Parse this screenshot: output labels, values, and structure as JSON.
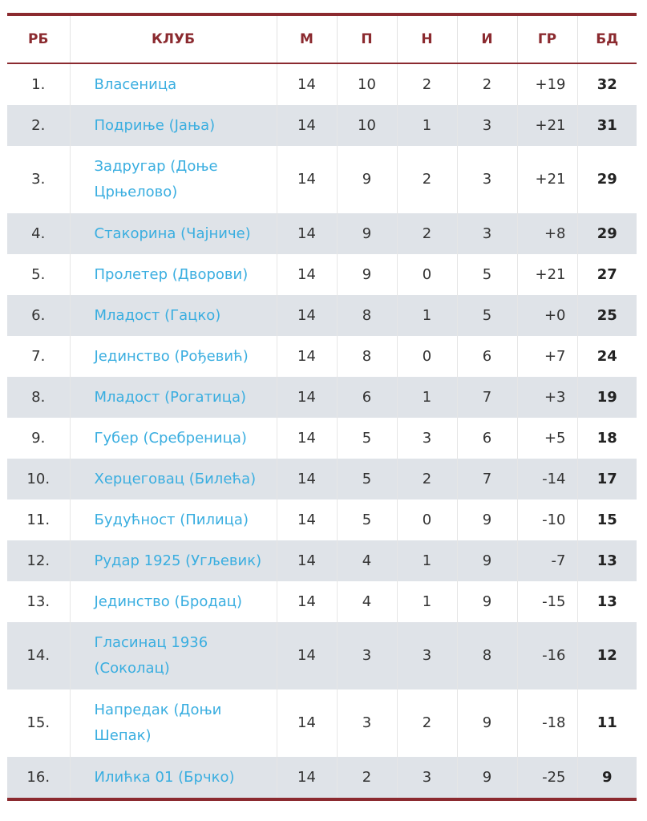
{
  "headers": {
    "pos": "РБ",
    "club": "КЛУБ",
    "m": "М",
    "p": "П",
    "n": "Н",
    "i": "И",
    "gr": "ГР",
    "bd": "БД"
  },
  "rows": [
    {
      "pos": "1.",
      "club": "Власеница",
      "m": "14",
      "p": "10",
      "n": "2",
      "i": "2",
      "gr": "+19",
      "bd": "32"
    },
    {
      "pos": "2.",
      "club": "Подриње (Јања)",
      "m": "14",
      "p": "10",
      "n": "1",
      "i": "3",
      "gr": "+21",
      "bd": "31"
    },
    {
      "pos": "3.",
      "club": "Задругар (Доње Црњелово)",
      "m": "14",
      "p": "9",
      "n": "2",
      "i": "3",
      "gr": "+21",
      "bd": "29"
    },
    {
      "pos": "4.",
      "club": "Стакорина (Чајниче)",
      "m": "14",
      "p": "9",
      "n": "2",
      "i": "3",
      "gr": "+8",
      "bd": "29"
    },
    {
      "pos": "5.",
      "club": "Пролетер (Дворови)",
      "m": "14",
      "p": "9",
      "n": "0",
      "i": "5",
      "gr": "+21",
      "bd": "27"
    },
    {
      "pos": "6.",
      "club": "Младост (Гацко)",
      "m": "14",
      "p": "8",
      "n": "1",
      "i": "5",
      "gr": "+0",
      "bd": "25"
    },
    {
      "pos": "7.",
      "club": "Јединство (Рођевић)",
      "m": "14",
      "p": "8",
      "n": "0",
      "i": "6",
      "gr": "+7",
      "bd": "24"
    },
    {
      "pos": "8.",
      "club": "Младост (Рогатица)",
      "m": "14",
      "p": "6",
      "n": "1",
      "i": "7",
      "gr": "+3",
      "bd": "19"
    },
    {
      "pos": "9.",
      "club": "Губер (Сребреница)",
      "m": "14",
      "p": "5",
      "n": "3",
      "i": "6",
      "gr": "+5",
      "bd": "18"
    },
    {
      "pos": "10.",
      "club": "Херцеговац (Билећа)",
      "m": "14",
      "p": "5",
      "n": "2",
      "i": "7",
      "gr": "-14",
      "bd": "17"
    },
    {
      "pos": "11.",
      "club": "Будућност (Пилица)",
      "m": "14",
      "p": "5",
      "n": "0",
      "i": "9",
      "gr": "-10",
      "bd": "15"
    },
    {
      "pos": "12.",
      "club": "Рудар 1925 (Угљевик)",
      "m": "14",
      "p": "4",
      "n": "1",
      "i": "9",
      "gr": "-7",
      "bd": "13"
    },
    {
      "pos": "13.",
      "club": "Јединство (Бродац)",
      "m": "14",
      "p": "4",
      "n": "1",
      "i": "9",
      "gr": "-15",
      "bd": "13"
    },
    {
      "pos": "14.",
      "club": "Гласинац 1936 (Соколац)",
      "m": "14",
      "p": "3",
      "n": "3",
      "i": "8",
      "gr": "-16",
      "bd": "12"
    },
    {
      "pos": "15.",
      "club": "Напредак (Доњи Шепак)",
      "m": "14",
      "p": "3",
      "n": "2",
      "i": "9",
      "gr": "-18",
      "bd": "11"
    },
    {
      "pos": "16.",
      "club": "Илићка 01 (Брчко)",
      "m": "14",
      "p": "2",
      "n": "3",
      "i": "9",
      "gr": "-25",
      "bd": "9"
    }
  ]
}
